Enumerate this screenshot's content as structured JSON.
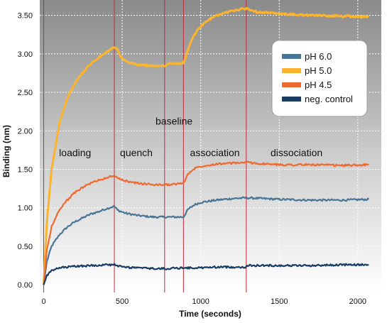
{
  "chart_data": {
    "type": "line",
    "xlabel": "Time (seconds)",
    "ylabel": "Binding (nm)",
    "xlim": [
      -25,
      2150
    ],
    "ylim": [
      -0.1,
      3.7
    ],
    "x_ticks": [
      0,
      500,
      1000,
      1500,
      2000
    ],
    "x_tick_labels": [
      "0",
      "500",
      "1000",
      "1500",
      "2000"
    ],
    "y_ticks": [
      0.0,
      0.5,
      1.0,
      1.5,
      2.0,
      2.5,
      3.0,
      3.5
    ],
    "y_tick_labels": [
      "0.00",
      "0.50",
      "1.00",
      "1.50",
      "2.00",
      "2.50",
      "3.00",
      "3.50"
    ],
    "grid": true,
    "legend_position": "top-right",
    "phase_boundaries": [
      0,
      450,
      770,
      890,
      1290
    ],
    "phase_labels": [
      {
        "text": "loading",
        "x": 200,
        "y": 1.67
      },
      {
        "text": "quench",
        "x": 590,
        "y": 1.67
      },
      {
        "text": "baseline",
        "x": 830,
        "y": 2.08
      },
      {
        "text": "association",
        "x": 1090,
        "y": 1.67
      },
      {
        "text": "dissociation",
        "x": 1610,
        "y": 1.67
      }
    ],
    "series": [
      {
        "name": "pH 6.0",
        "color": "#4a7696",
        "x": [
          0,
          20,
          50,
          100,
          150,
          200,
          250,
          300,
          350,
          400,
          450,
          470,
          520,
          600,
          700,
          770,
          800,
          890,
          920,
          960,
          1000,
          1100,
          1200,
          1290,
          1400,
          1500,
          1700,
          1900,
          2070
        ],
        "y": [
          0.0,
          0.3,
          0.5,
          0.65,
          0.75,
          0.82,
          0.87,
          0.92,
          0.95,
          0.99,
          1.02,
          0.97,
          0.93,
          0.9,
          0.88,
          0.88,
          0.88,
          0.88,
          0.98,
          1.04,
          1.07,
          1.1,
          1.12,
          1.13,
          1.12,
          1.11,
          1.1,
          1.1,
          1.11
        ]
      },
      {
        "name": "pH 5.0",
        "color": "#fbb42b",
        "x": [
          0,
          20,
          50,
          100,
          150,
          200,
          250,
          300,
          350,
          400,
          450,
          470,
          500,
          550,
          600,
          700,
          770,
          800,
          890,
          920,
          950,
          1000,
          1050,
          1100,
          1200,
          1290,
          1350,
          1500,
          1700,
          1900,
          2070
        ],
        "y": [
          0.0,
          0.8,
          1.5,
          2.1,
          2.42,
          2.62,
          2.76,
          2.87,
          2.95,
          3.02,
          3.09,
          3.05,
          2.93,
          2.88,
          2.86,
          2.84,
          2.85,
          2.87,
          2.88,
          3.05,
          3.22,
          3.36,
          3.44,
          3.5,
          3.56,
          3.59,
          3.55,
          3.52,
          3.5,
          3.49,
          3.48
        ]
      },
      {
        "name": "pH 4.5",
        "color": "#ef6a2e",
        "x": [
          0,
          20,
          50,
          100,
          150,
          200,
          250,
          300,
          350,
          400,
          450,
          470,
          520,
          600,
          700,
          770,
          800,
          890,
          920,
          960,
          1000,
          1100,
          1200,
          1290,
          1400,
          1500,
          1700,
          1900,
          2070
        ],
        "y": [
          0.0,
          0.45,
          0.75,
          0.98,
          1.1,
          1.2,
          1.27,
          1.32,
          1.36,
          1.39,
          1.42,
          1.38,
          1.35,
          1.32,
          1.3,
          1.3,
          1.3,
          1.32,
          1.44,
          1.51,
          1.54,
          1.57,
          1.58,
          1.59,
          1.57,
          1.56,
          1.56,
          1.55,
          1.56
        ]
      },
      {
        "name": "neg. control",
        "color": "#183c63",
        "x": [
          0,
          20,
          50,
          100,
          200,
          300,
          400,
          450,
          500,
          600,
          700,
          770,
          890,
          1000,
          1100,
          1200,
          1290,
          1300,
          1500,
          1700,
          1900,
          2070
        ],
        "y": [
          0.0,
          0.12,
          0.18,
          0.22,
          0.24,
          0.25,
          0.26,
          0.26,
          0.23,
          0.22,
          0.21,
          0.21,
          0.22,
          0.22,
          0.23,
          0.23,
          0.23,
          0.25,
          0.25,
          0.25,
          0.26,
          0.26
        ]
      }
    ]
  }
}
